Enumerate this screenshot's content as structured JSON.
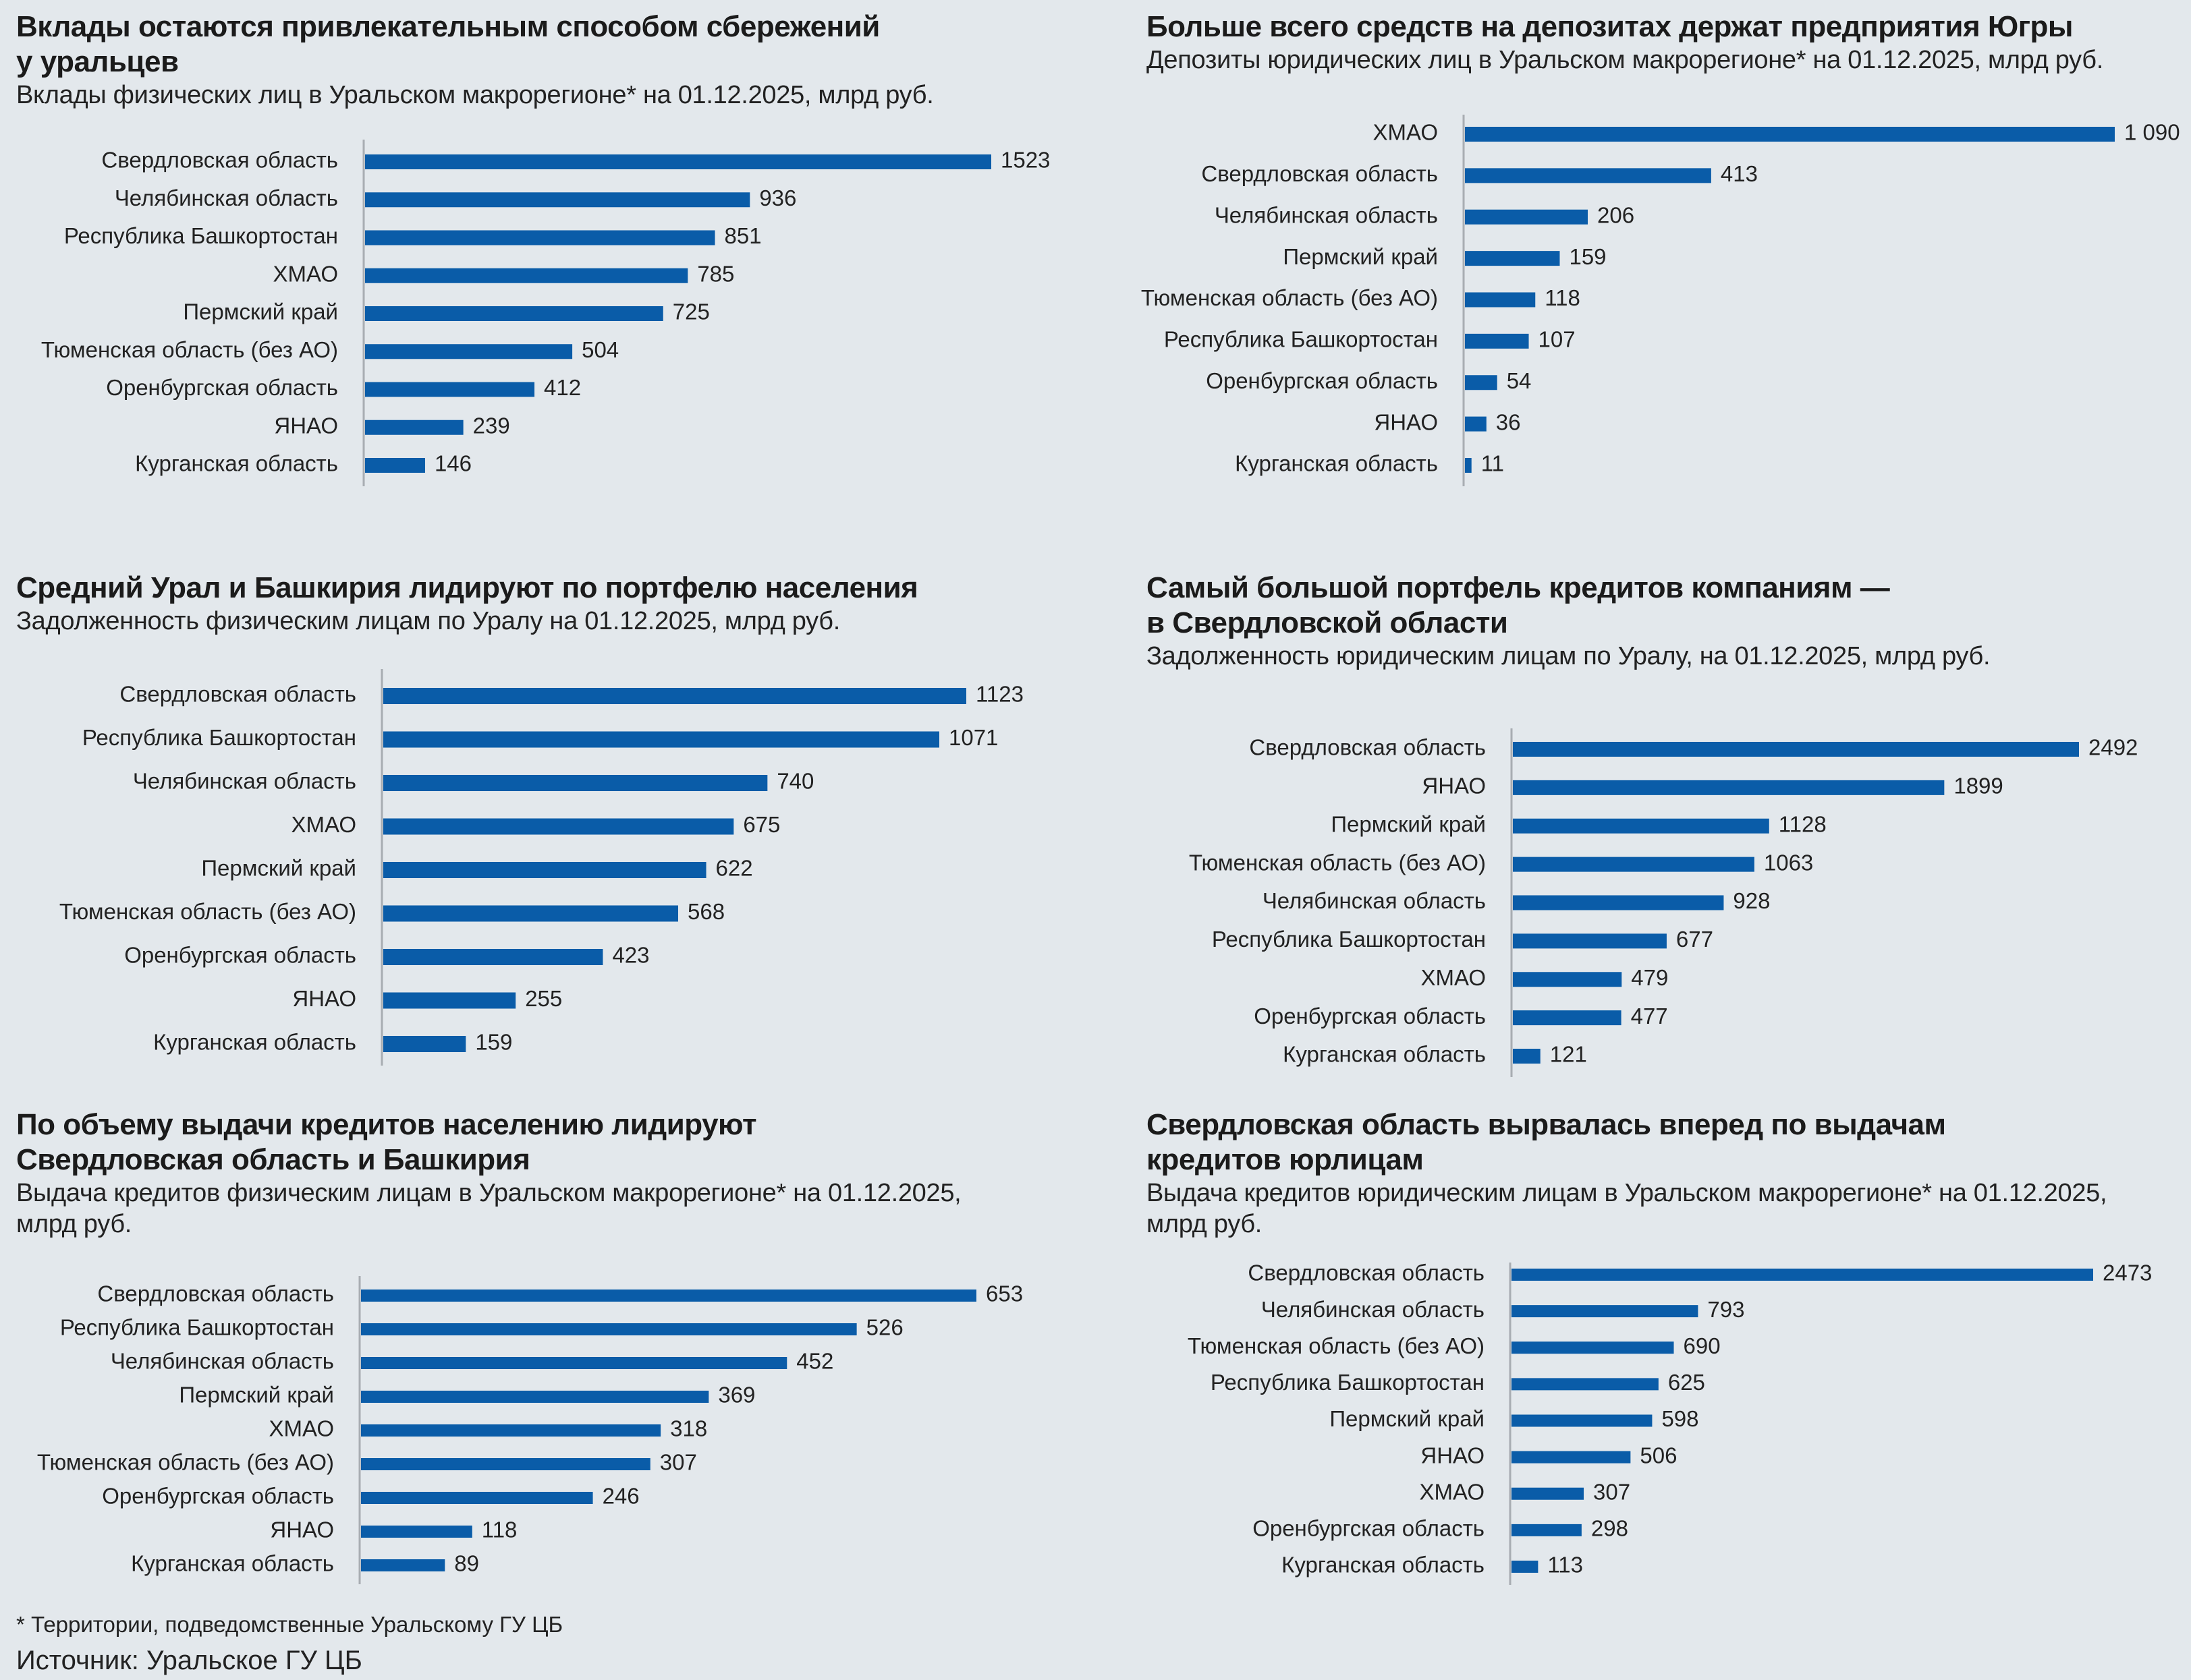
{
  "colors": {
    "background": "#e3e8ec",
    "bar": "#0a5ca8",
    "axis": "#a8adb2",
    "text": "#1b1b1b"
  },
  "chart_data": [
    {
      "type": "bar",
      "orientation": "horizontal",
      "title": "Вклады остаются привлекательным способом сбережений\nу уральцев",
      "subtitle": "Вклады физических лиц в Уральском макрорегионе* на 01.12.2025, млрд руб.",
      "categories": [
        "Свердловская область",
        "Челябинская область",
        "Республика Башкортостан",
        "ХМАО",
        "Пермский край",
        "Тюменская область (без АО)",
        "Оренбургская область",
        "ЯНАО",
        "Курганская область"
      ],
      "values": [
        1523,
        936,
        851,
        785,
        725,
        504,
        412,
        239,
        146
      ],
      "value_labels": [
        "1523",
        "936",
        "851",
        "785",
        "725",
        "504",
        "412",
        "239",
        "146"
      ],
      "xlabel": "",
      "ylabel": "",
      "xlim": [
        0,
        1523
      ],
      "grid": false,
      "legend": "none"
    },
    {
      "type": "bar",
      "orientation": "horizontal",
      "title": "Больше всего средств на депозитах держат предприятия Югры",
      "subtitle": "Депозиты юридических лиц в Уральском макрорегионе* на 01.12.2025, млрд руб.",
      "categories": [
        "ХМАО",
        "Свердловская область",
        "Челябинская область",
        "Пермский край",
        "Тюменская область (без АО)",
        "Республика Башкортостан",
        "Оренбургская область",
        "ЯНАО",
        "Курганская область"
      ],
      "values": [
        1090,
        413,
        206,
        159,
        118,
        107,
        54,
        36,
        11
      ],
      "value_labels": [
        "1 090",
        "413",
        "206",
        "159",
        "118",
        "107",
        "54",
        "36",
        "11"
      ],
      "xlabel": "",
      "ylabel": "",
      "xlim": [
        0,
        1090
      ],
      "grid": false,
      "legend": "none"
    },
    {
      "type": "bar",
      "orientation": "horizontal",
      "title": "Средний Урал и Башкирия лидируют по портфелю населения",
      "subtitle": "Задолженность физическим лицам по Уралу на 01.12.2025, млрд руб.",
      "categories": [
        "Свердловская область",
        "Республика Башкортостан",
        "Челябинская область",
        "ХМАО",
        "Пермский край",
        "Тюменская область (без АО)",
        "Оренбургская область",
        "ЯНАО",
        "Курганская область"
      ],
      "values": [
        1123,
        1071,
        740,
        675,
        622,
        568,
        423,
        255,
        159
      ],
      "value_labels": [
        "1123",
        "1071",
        "740",
        "675",
        "622",
        "568",
        "423",
        "255",
        "159"
      ],
      "xlabel": "",
      "ylabel": "",
      "xlim": [
        0,
        1123
      ],
      "grid": false,
      "legend": "none"
    },
    {
      "type": "bar",
      "orientation": "horizontal",
      "title": "Самый большой портфель кредитов компаниям —\nв Свердловской области",
      "subtitle": "Задолженность юридическим лицам по Уралу, на 01.12.2025, млрд руб.",
      "categories": [
        "Свердловская область",
        "ЯНАО",
        "Пермский край",
        "Тюменская область (без АО)",
        "Челябинская область",
        "Республика Башкортостан",
        "ХМАО",
        "Оренбургская область",
        "Курганская область"
      ],
      "values": [
        2492,
        1899,
        1128,
        1063,
        928,
        677,
        479,
        477,
        121
      ],
      "value_labels": [
        "2492",
        "1899",
        "1128",
        "1063",
        "928",
        "677",
        "479",
        "477",
        "121"
      ],
      "xlabel": "",
      "ylabel": "",
      "xlim": [
        0,
        2492
      ],
      "grid": false,
      "legend": "none"
    },
    {
      "type": "bar",
      "orientation": "horizontal",
      "title": "По объему выдачи кредитов населению лидируют\nСвердловская область и Башкирия",
      "subtitle": "Выдача кредитов физическим лицам в Уральском макрорегионе* на 01.12.2025,\nмлрд руб.",
      "categories": [
        "Свердловская область",
        "Республика Башкортостан",
        "Челябинская область",
        "Пермский край",
        "ХМАО",
        "Тюменская область (без АО)",
        "Оренбургская область",
        "ЯНАО",
        "Курганская область"
      ],
      "values": [
        653,
        526,
        452,
        369,
        318,
        307,
        246,
        118,
        89
      ],
      "value_labels": [
        "653",
        "526",
        "452",
        "369",
        "318",
        "307",
        "246",
        "118",
        "89"
      ],
      "xlabel": "",
      "ylabel": "",
      "xlim": [
        0,
        653
      ],
      "grid": false,
      "legend": "none"
    },
    {
      "type": "bar",
      "orientation": "horizontal",
      "title": "Свердловская область вырвалась вперед по выдачам\nкредитов юрлицам",
      "subtitle": "Выдача кредитов юридическим лицам в Уральском макрорегионе* на 01.12.2025,\nмлрд руб.",
      "categories": [
        "Свердловская область",
        "Челябинская область",
        "Тюменская область (без АО)",
        "Республика Башкортостан",
        "Пермский край",
        "ЯНАО",
        "ХМАО",
        "Оренбургская область",
        "Курганская область"
      ],
      "values": [
        2473,
        793,
        690,
        625,
        598,
        506,
        307,
        298,
        113
      ],
      "value_labels": [
        "2473",
        "793",
        "690",
        "625",
        "598",
        "506",
        "307",
        "298",
        "113"
      ],
      "xlabel": "",
      "ylabel": "",
      "xlim": [
        0,
        2473
      ],
      "grid": false,
      "legend": "none"
    }
  ],
  "footer": {
    "footnote": "* Территории, подведомственные Уральскому ГУ ЦБ",
    "source": "Источник: Уральское ГУ ЦБ"
  }
}
